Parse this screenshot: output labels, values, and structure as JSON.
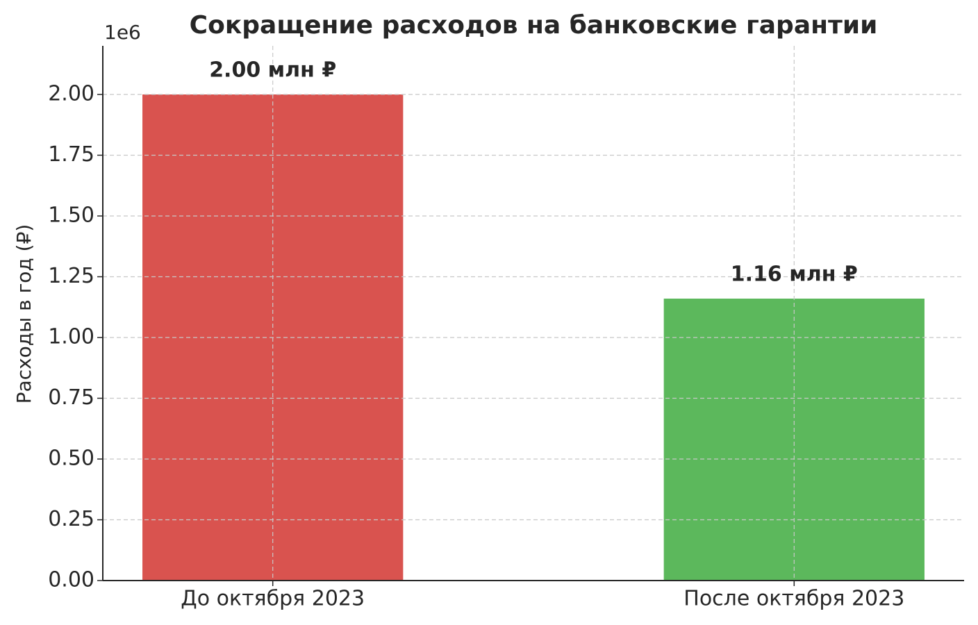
{
  "chart_data": {
    "type": "bar",
    "title": "Сокращение расходов на банковские гарантии",
    "y_label": "Расходы в год (₽)",
    "y_offset_label": "1e6",
    "categories": [
      "До октября 2023",
      "После октября 2023"
    ],
    "values": [
      2000000,
      1160000
    ],
    "value_labels": [
      "2.00 млн ₽",
      "1.16 млн ₽"
    ],
    "colors": [
      "#d9534f",
      "#5cb85c"
    ],
    "ylim": [
      0,
      2200000
    ],
    "yticks": [
      {
        "value": 0,
        "label": "0.00"
      },
      {
        "value": 250000,
        "label": "0.25"
      },
      {
        "value": 500000,
        "label": "0.50"
      },
      {
        "value": 750000,
        "label": "0.75"
      },
      {
        "value": 1000000,
        "label": "1.00"
      },
      {
        "value": 1250000,
        "label": "1.25"
      },
      {
        "value": 1500000,
        "label": "1.50"
      },
      {
        "value": 1750000,
        "label": "1.75"
      },
      {
        "value": 2000000,
        "label": "2.00"
      }
    ],
    "grid": true
  }
}
